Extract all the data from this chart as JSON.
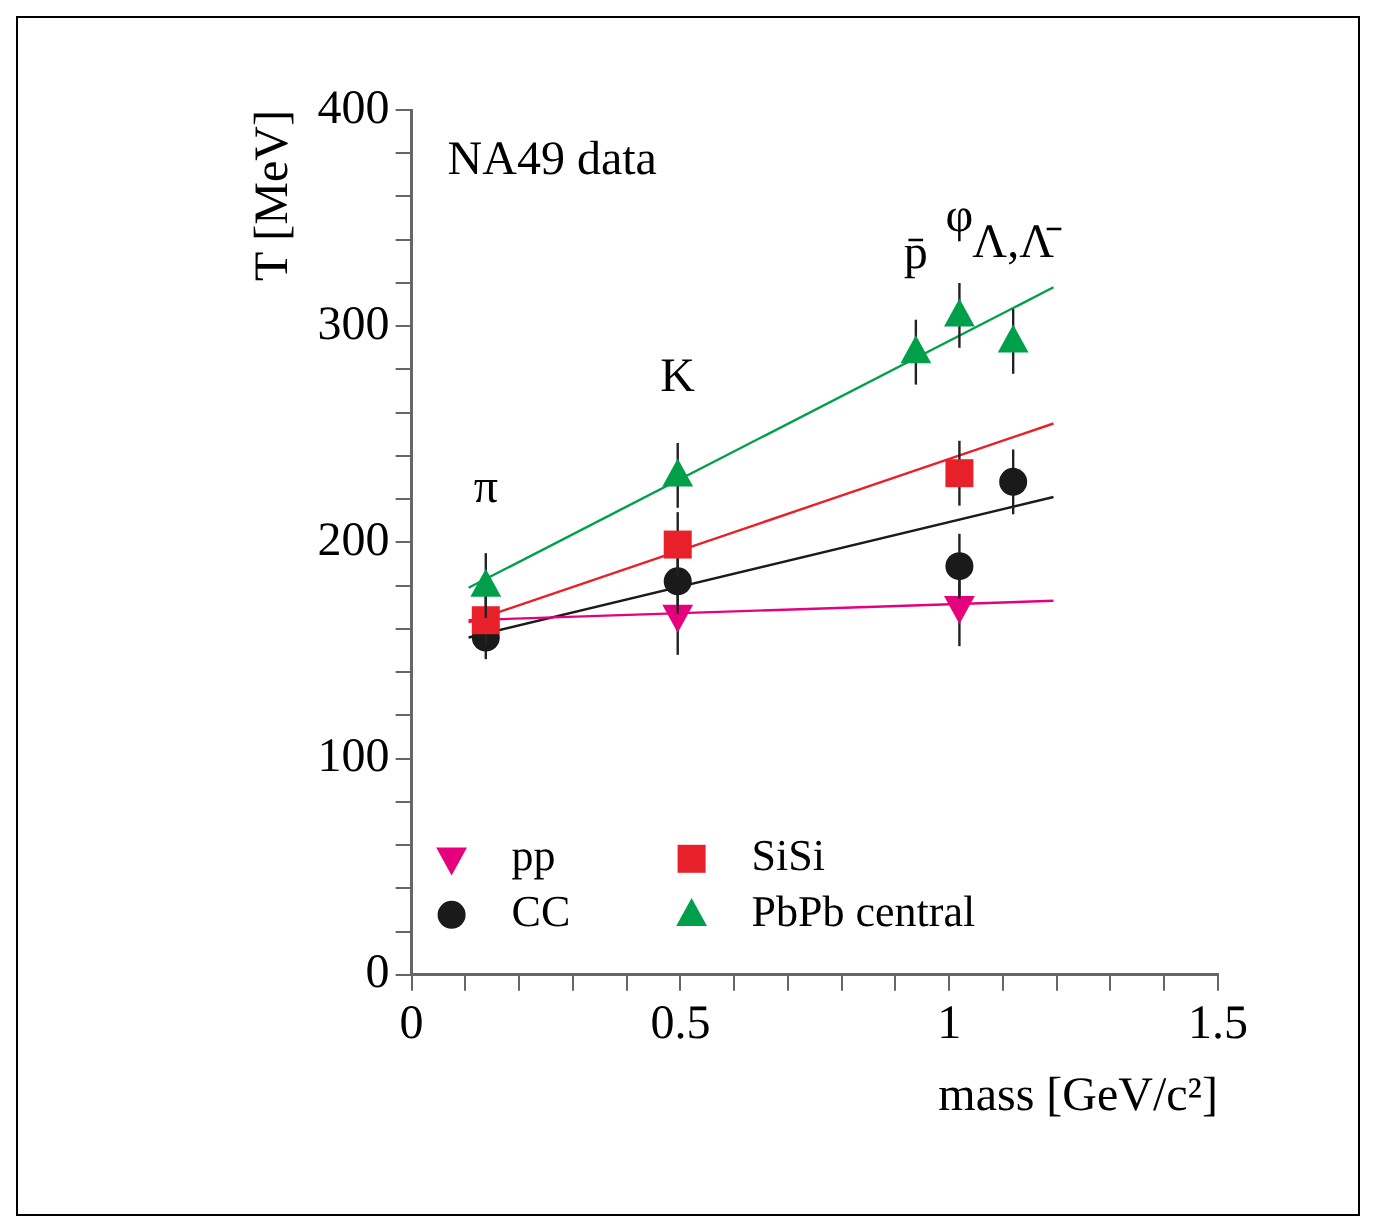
{
  "chart_data": {
    "type": "scatter",
    "xlabel": "mass [GeV/c²]",
    "ylabel": "T [MeV]",
    "xlim": [
      0,
      1.5
    ],
    "ylim": [
      0,
      400
    ],
    "xticks": [
      0,
      {
        "value": 0.1,
        "label": null
      },
      {
        "value": 0.2,
        "label": null
      },
      {
        "value": 0.3,
        "label": null
      },
      {
        "value": 0.4,
        "label": null
      },
      0.5,
      {
        "value": 0.6,
        "label": null
      },
      {
        "value": 0.7,
        "label": null
      },
      {
        "value": 0.8,
        "label": null
      },
      {
        "value": 0.9,
        "label": null
      },
      1,
      {
        "value": 1.1,
        "label": null
      },
      {
        "value": 1.2,
        "label": null
      },
      {
        "value": 1.3,
        "label": null
      },
      {
        "value": 1.4,
        "label": null
      },
      1.5
    ],
    "yticks": [
      0,
      {
        "value": 20,
        "label": null
      },
      {
        "value": 40,
        "label": null
      },
      {
        "value": 60,
        "label": null
      },
      {
        "value": 80,
        "label": null
      },
      100,
      {
        "value": 120,
        "label": null
      },
      {
        "value": 140,
        "label": null
      },
      {
        "value": 160,
        "label": null
      },
      {
        "value": 180,
        "label": null
      },
      200,
      {
        "value": 220,
        "label": null
      },
      {
        "value": 240,
        "label": null
      },
      {
        "value": 260,
        "label": null
      },
      {
        "value": 280,
        "label": null
      },
      300,
      {
        "value": 320,
        "label": null
      },
      {
        "value": 340,
        "label": null
      },
      {
        "value": 360,
        "label": null
      },
      {
        "value": 380,
        "label": null
      },
      400
    ],
    "grid": false,
    "legend": "bottom left",
    "series": [
      {
        "name": "pp",
        "marker": "triangle-down",
        "color": "#e6007e",
        "x": [
          0.495,
          1.019
        ],
        "values": [
          166,
          170
        ],
        "errors": [
          18,
          18
        ]
      },
      {
        "name": "CC",
        "marker": "circle",
        "color": "#1a1a1a",
        "x": [
          0.138,
          0.495,
          1.019,
          1.119
        ],
        "values": [
          156,
          182,
          189,
          228
        ],
        "errors": [
          10,
          15,
          15,
          15
        ]
      },
      {
        "name": "SiSi",
        "marker": "square",
        "color": "#e8202a",
        "x": [
          0.138,
          0.495,
          1.019
        ],
        "values": [
          164,
          199,
          232
        ],
        "errors": [
          12,
          15,
          15
        ]
      },
      {
        "name": "PbPb central",
        "marker": "triangle",
        "color": "#00a04a",
        "x": [
          0.138,
          0.495,
          0.938,
          1.019,
          1.119
        ],
        "values": [
          180,
          231,
          288,
          305,
          293
        ],
        "errors": [
          15,
          15,
          15,
          15,
          15
        ]
      },
      {
        "type": "line",
        "marker": "none",
        "color": "#e6007e",
        "x": [
          0.106,
          1.194
        ],
        "values": [
          164,
          173
        ]
      },
      {
        "type": "line",
        "marker": "none",
        "color": "#1a1a1a",
        "x": [
          0.106,
          1.194
        ],
        "values": [
          156,
          221
        ]
      },
      {
        "type": "line",
        "marker": "none",
        "color": "#e8202a",
        "x": [
          0.106,
          1.194
        ],
        "values": [
          163,
          255
        ]
      },
      {
        "type": "line",
        "marker": "none",
        "color": "#00a04a",
        "x": [
          0.106,
          1.194
        ],
        "values": [
          179,
          318
        ]
      }
    ],
    "annotations": [
      "NA49 data",
      {
        "text": "π",
        "x": 0.138,
        "y": 180
      },
      {
        "text": "K",
        "x": 0.495,
        "y": 231
      },
      {
        "text": "p̄",
        "x": 0.938,
        "y": 288
      },
      {
        "text": "φ",
        "x": 1.019,
        "y": 305
      },
      {
        "text": "Λ,Λ̄",
        "x": 1.119,
        "y": 293
      }
    ]
  }
}
